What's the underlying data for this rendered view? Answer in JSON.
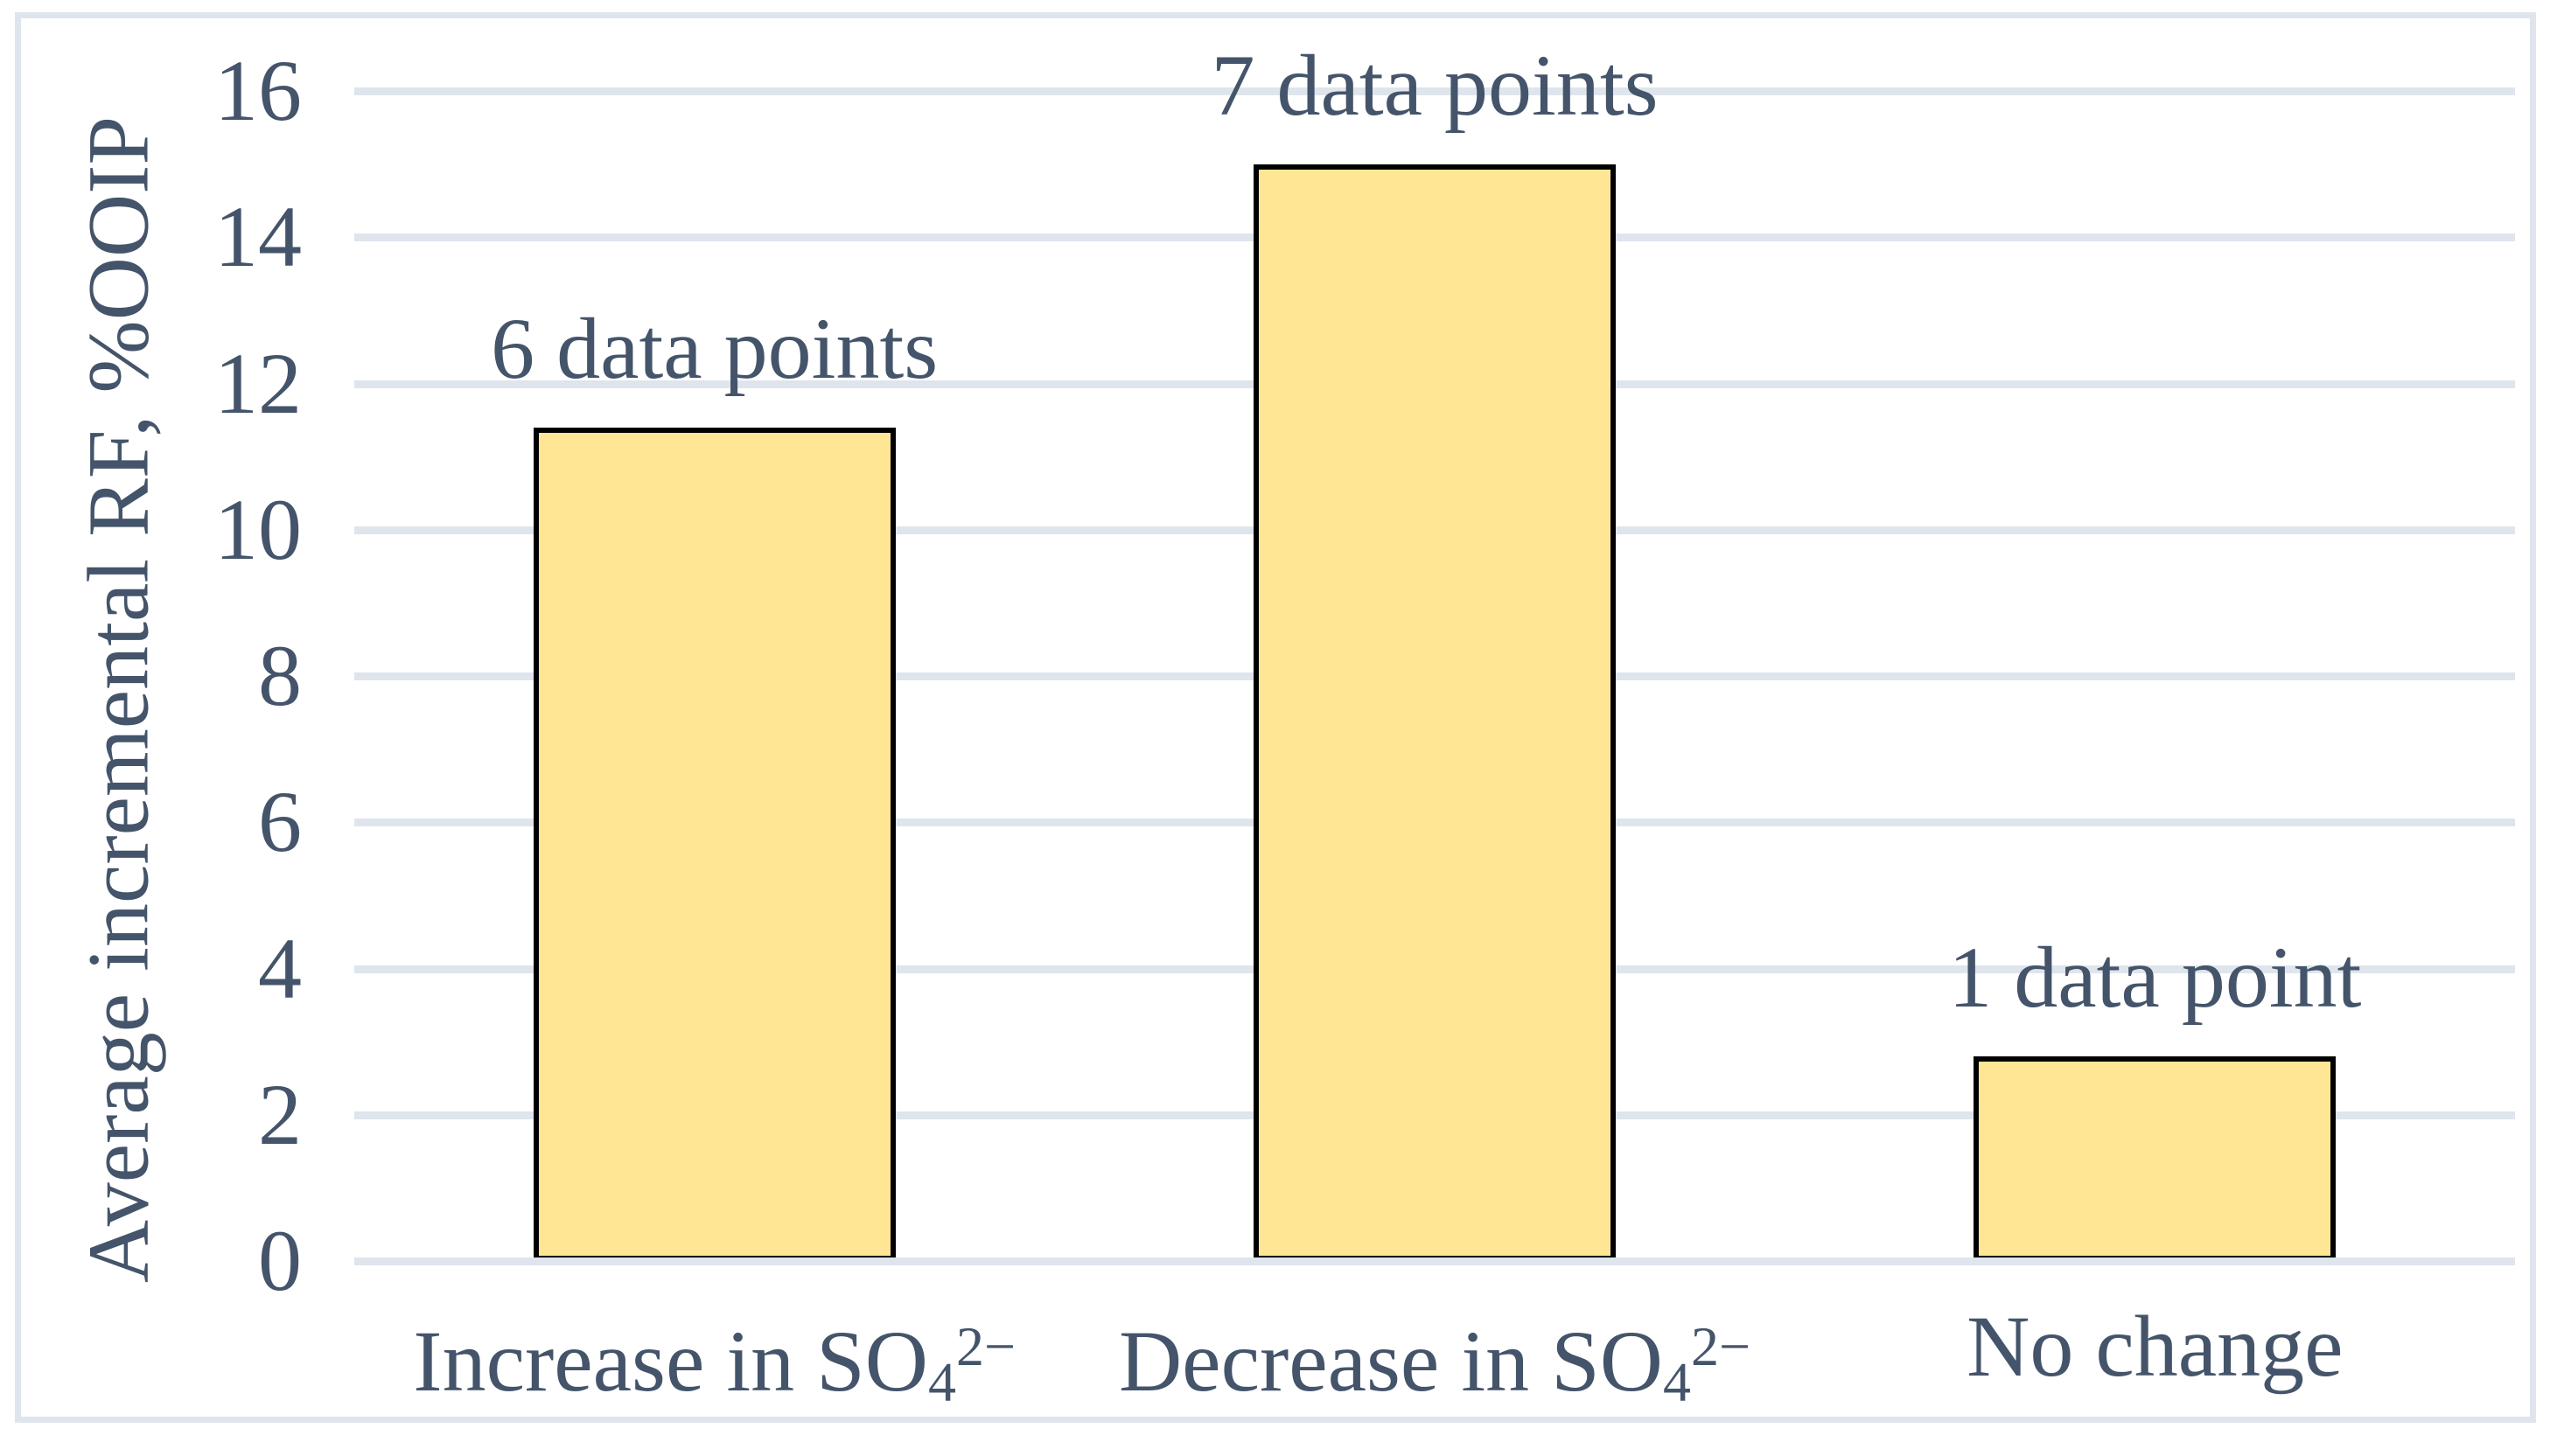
{
  "chart_data": {
    "type": "bar",
    "categories": [
      {
        "pre": "Increase in SO",
        "sub": "4",
        "sup": "2−"
      },
      {
        "pre": "Decrease in SO",
        "sub": "4",
        "sup": "2−"
      },
      {
        "pre": "No change",
        "sub": "",
        "sup": ""
      }
    ],
    "values": [
      11.4,
      15.0,
      2.8
    ],
    "bar_labels": [
      "6 data points",
      "7 data points",
      "1 data point"
    ],
    "title": "",
    "xlabel": "",
    "ylabel": "Average incremental RF, %OOIP",
    "ylim": [
      0,
      16
    ],
    "yticks": [
      0,
      2,
      4,
      6,
      8,
      10,
      12,
      14,
      16
    ],
    "grid": "horizontal",
    "legend": "none",
    "colors": {
      "bar_fill": "#FFE694",
      "bar_border": "#000000",
      "gridline": "#DFE5EC",
      "chart_border": "#DFE5EC",
      "text": "#44546A",
      "background": "#FFFFFF"
    }
  }
}
